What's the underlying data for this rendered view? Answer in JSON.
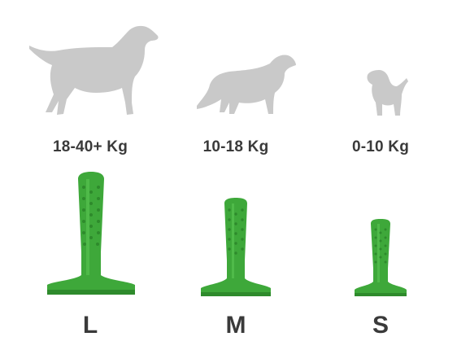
{
  "colors": {
    "dog_silhouette": "#c9c9c9",
    "brush_green": "#3ea83a",
    "brush_dark": "#2e8a2c",
    "brush_light": "#5cc653",
    "text": "#3a3a3a"
  },
  "sizes": [
    {
      "weight": "18-40+ Kg",
      "size_label": "L",
      "dog_icon": "large-dog-icon"
    },
    {
      "weight": "10-18 Kg",
      "size_label": "M",
      "dog_icon": "medium-dog-icon"
    },
    {
      "weight": "0-10 Kg",
      "size_label": "S",
      "dog_icon": "small-dog-icon"
    }
  ]
}
